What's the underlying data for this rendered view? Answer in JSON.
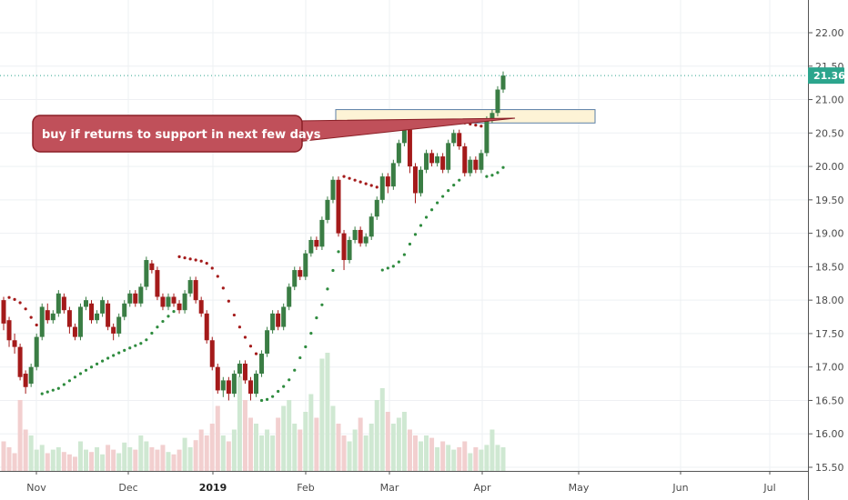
{
  "chart_data": {
    "type": "candlestick",
    "x_ticks": [
      "Nov",
      "Dec",
      "2019",
      "Feb",
      "Mar",
      "Apr",
      "May",
      "Jun",
      "Jul"
    ],
    "x_tick_bold": [
      "2019"
    ],
    "y_ticks": [
      "22.00",
      "21.50",
      "21.00",
      "20.50",
      "20.00",
      "19.50",
      "19.00",
      "18.50",
      "18.00",
      "17.50",
      "17.00",
      "16.50",
      "16.00",
      "15.50"
    ],
    "ylim": [
      15.5,
      22.3
    ],
    "last_price": "21.36",
    "last_price_value": 21.36,
    "annotation": "buy if returns to support in next few days",
    "support_zone": [
      20.65,
      20.85
    ],
    "colors": {
      "up": "#3a7d44",
      "down": "#a41a1a",
      "vol_up": "#cfe8d2",
      "vol_down": "#f2cfcf",
      "sar_up": "#2e8b3e",
      "sar_down": "#a41a1a",
      "price_line": "#2ca58d",
      "note_fill": "#c0505a",
      "zone_fill": "#fdf3d6"
    },
    "candles": [
      [
        18.0,
        17.65,
        18.05,
        17.55
      ],
      [
        17.7,
        17.4,
        17.75,
        17.3
      ],
      [
        17.4,
        17.3,
        17.5,
        17.2
      ],
      [
        17.3,
        16.85,
        17.35,
        16.8
      ],
      [
        16.9,
        16.7,
        16.95,
        16.6
      ],
      [
        16.75,
        17.0,
        17.05,
        16.7
      ],
      [
        17.0,
        17.45,
        17.5,
        16.95
      ],
      [
        17.45,
        17.9,
        17.95,
        17.4
      ],
      [
        17.85,
        17.7,
        17.95,
        17.65
      ],
      [
        17.7,
        17.8,
        17.85,
        17.65
      ],
      [
        17.8,
        18.1,
        18.15,
        17.75
      ],
      [
        18.05,
        17.85,
        18.1,
        17.8
      ],
      [
        17.85,
        17.6,
        17.9,
        17.5
      ],
      [
        17.6,
        17.45,
        17.65,
        17.4
      ],
      [
        17.45,
        17.9,
        17.95,
        17.4
      ],
      [
        17.9,
        18.0,
        18.05,
        17.85
      ],
      [
        17.95,
        17.7,
        18.0,
        17.65
      ],
      [
        17.7,
        17.8,
        17.85,
        17.65
      ],
      [
        17.8,
        18.0,
        18.05,
        17.75
      ],
      [
        17.95,
        17.6,
        18.0,
        17.55
      ],
      [
        17.6,
        17.5,
        17.65,
        17.4
      ],
      [
        17.5,
        17.75,
        17.8,
        17.45
      ],
      [
        17.75,
        17.95,
        18.0,
        17.7
      ],
      [
        17.95,
        18.1,
        18.15,
        17.9
      ],
      [
        18.1,
        17.95,
        18.15,
        17.9
      ],
      [
        17.95,
        18.2,
        18.25,
        17.9
      ],
      [
        18.2,
        18.6,
        18.65,
        18.15
      ],
      [
        18.55,
        18.45,
        18.6,
        18.4
      ],
      [
        18.45,
        18.05,
        18.5,
        18.0
      ],
      [
        18.05,
        17.9,
        18.1,
        17.85
      ],
      [
        17.9,
        18.05,
        18.1,
        17.85
      ],
      [
        18.05,
        17.95,
        18.1,
        17.9
      ],
      [
        17.95,
        17.85,
        18.0,
        17.8
      ],
      [
        17.85,
        18.1,
        18.15,
        17.8
      ],
      [
        18.1,
        18.3,
        18.35,
        18.05
      ],
      [
        18.3,
        18.0,
        18.35,
        17.95
      ],
      [
        18.0,
        17.8,
        18.05,
        17.75
      ],
      [
        17.8,
        17.4,
        17.85,
        17.35
      ],
      [
        17.4,
        17.0,
        17.45,
        16.95
      ],
      [
        17.0,
        16.65,
        17.05,
        16.6
      ],
      [
        16.65,
        16.8,
        16.85,
        16.55
      ],
      [
        16.8,
        16.6,
        16.85,
        16.5
      ],
      [
        16.6,
        16.9,
        16.95,
        16.55
      ],
      [
        16.9,
        17.05,
        17.1,
        16.85
      ],
      [
        17.05,
        16.8,
        17.1,
        16.75
      ],
      [
        16.8,
        16.6,
        16.85,
        16.5
      ],
      [
        16.6,
        16.9,
        16.95,
        16.55
      ],
      [
        16.9,
        17.2,
        17.25,
        16.85
      ],
      [
        17.2,
        17.55,
        17.6,
        17.15
      ],
      [
        17.55,
        17.8,
        17.85,
        17.5
      ],
      [
        17.8,
        17.6,
        17.85,
        17.55
      ],
      [
        17.6,
        17.9,
        17.95,
        17.55
      ],
      [
        17.9,
        18.2,
        18.25,
        17.85
      ],
      [
        18.2,
        18.45,
        18.5,
        18.15
      ],
      [
        18.45,
        18.35,
        18.5,
        18.3
      ],
      [
        18.35,
        18.7,
        18.75,
        18.3
      ],
      [
        18.7,
        18.9,
        18.95,
        18.65
      ],
      [
        18.9,
        18.8,
        18.95,
        18.75
      ],
      [
        18.8,
        19.2,
        19.25,
        18.75
      ],
      [
        19.2,
        19.5,
        19.55,
        19.15
      ],
      [
        19.5,
        19.8,
        19.85,
        19.45
      ],
      [
        19.8,
        19.0,
        19.85,
        18.95
      ],
      [
        19.0,
        18.6,
        19.05,
        18.45
      ],
      [
        18.6,
        18.9,
        18.95,
        18.55
      ],
      [
        18.9,
        19.05,
        19.1,
        18.85
      ],
      [
        19.05,
        18.85,
        19.1,
        18.8
      ],
      [
        18.85,
        18.95,
        19.0,
        18.8
      ],
      [
        18.95,
        19.25,
        19.3,
        18.9
      ],
      [
        19.25,
        19.5,
        19.55,
        19.2
      ],
      [
        19.5,
        19.85,
        19.9,
        19.45
      ],
      [
        19.85,
        19.7,
        19.9,
        19.6
      ],
      [
        19.7,
        20.05,
        20.1,
        19.65
      ],
      [
        20.05,
        20.35,
        20.4,
        20.0
      ],
      [
        20.35,
        20.6,
        20.65,
        20.3
      ],
      [
        20.55,
        20.0,
        20.6,
        19.9
      ],
      [
        20.0,
        19.6,
        20.05,
        19.45
      ],
      [
        19.6,
        19.95,
        20.0,
        19.55
      ],
      [
        19.95,
        20.2,
        20.25,
        19.9
      ],
      [
        20.2,
        20.05,
        20.25,
        20.0
      ],
      [
        20.05,
        20.15,
        20.2,
        20.0
      ],
      [
        20.15,
        19.95,
        20.2,
        19.9
      ],
      [
        19.95,
        20.35,
        20.4,
        19.9
      ],
      [
        20.35,
        20.5,
        20.55,
        20.3
      ],
      [
        20.5,
        20.3,
        20.55,
        20.25
      ],
      [
        20.3,
        19.9,
        20.35,
        19.85
      ],
      [
        19.9,
        20.1,
        20.15,
        19.85
      ],
      [
        20.1,
        19.95,
        20.15,
        19.9
      ],
      [
        19.95,
        20.2,
        20.25,
        19.9
      ],
      [
        20.2,
        20.7,
        20.75,
        20.15
      ],
      [
        20.7,
        20.8,
        20.85,
        20.65
      ],
      [
        20.8,
        21.15,
        21.2,
        20.75
      ],
      [
        21.15,
        21.36,
        21.42,
        21.1
      ]
    ],
    "volumes": [
      0.25,
      0.2,
      0.15,
      0.6,
      0.35,
      0.3,
      0.18,
      0.22,
      0.15,
      0.18,
      0.2,
      0.16,
      0.14,
      0.12,
      0.25,
      0.18,
      0.16,
      0.2,
      0.14,
      0.22,
      0.18,
      0.15,
      0.24,
      0.2,
      0.18,
      0.3,
      0.25,
      0.2,
      0.18,
      0.22,
      0.16,
      0.14,
      0.18,
      0.28,
      0.2,
      0.26,
      0.35,
      0.3,
      0.4,
      0.55,
      0.3,
      0.25,
      0.35,
      0.8,
      0.6,
      0.45,
      0.4,
      0.3,
      0.35,
      0.3,
      0.45,
      0.55,
      0.6,
      0.4,
      0.35,
      0.5,
      0.65,
      0.45,
      0.95,
      1.0,
      0.55,
      0.4,
      0.3,
      0.25,
      0.35,
      0.45,
      0.3,
      0.4,
      0.6,
      0.7,
      0.5,
      0.4,
      0.45,
      0.5,
      0.35,
      0.3,
      0.25,
      0.3,
      0.28,
      0.2,
      0.25,
      0.22,
      0.18,
      0.2,
      0.25,
      0.15,
      0.2,
      0.18,
      0.22,
      0.35,
      0.22,
      0.2
    ]
  }
}
